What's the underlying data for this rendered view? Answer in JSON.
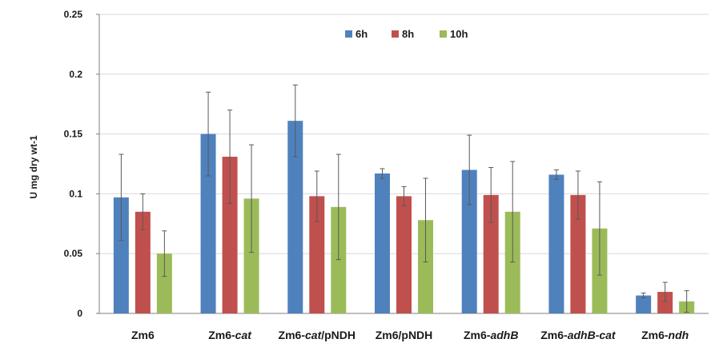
{
  "chart_data": {
    "type": "bar",
    "title": "",
    "xlabel": "",
    "ylabel": "U mg dry wt-1",
    "ylim": [
      0,
      0.25
    ],
    "yticks": [
      "0",
      "0.05",
      "0.1",
      "0.15",
      "0.2",
      "0.25"
    ],
    "ytick_values": [
      0,
      0.05,
      0.1,
      0.15,
      0.2,
      0.25
    ],
    "grid": true,
    "legend_position": "top-center",
    "categories": [
      {
        "parts": [
          [
            "Zm6",
            false
          ]
        ]
      },
      {
        "parts": [
          [
            "Zm6-",
            false
          ],
          [
            "cat",
            true
          ]
        ]
      },
      {
        "parts": [
          [
            "Zm6-",
            false
          ],
          [
            "cat",
            true
          ],
          [
            "/pNDH",
            false
          ]
        ]
      },
      {
        "parts": [
          [
            "Zm6/pNDH",
            false
          ]
        ]
      },
      {
        "parts": [
          [
            "Zm6-",
            false
          ],
          [
            "adhB",
            true
          ]
        ]
      },
      {
        "parts": [
          [
            "Zm6-",
            false
          ],
          [
            "adhB-cat",
            true
          ]
        ]
      },
      {
        "parts": [
          [
            "Zm6-",
            false
          ],
          [
            "ndh",
            true
          ]
        ]
      }
    ],
    "series": [
      {
        "name": "6h",
        "color": "#4f81bd",
        "values": [
          0.097,
          0.15,
          0.161,
          0.117,
          0.12,
          0.116,
          0.015
        ],
        "errors": [
          0.036,
          0.035,
          0.03,
          0.004,
          0.029,
          0.004,
          0.002
        ]
      },
      {
        "name": "8h",
        "color": "#c0504d",
        "values": [
          0.085,
          0.131,
          0.098,
          0.098,
          0.099,
          0.099,
          0.018
        ],
        "errors": [
          0.015,
          0.039,
          0.021,
          0.008,
          0.023,
          0.02,
          0.008
        ]
      },
      {
        "name": "10h",
        "color": "#9bbb59",
        "values": [
          0.05,
          0.096,
          0.089,
          0.078,
          0.085,
          0.071,
          0.01
        ],
        "errors": [
          0.019,
          0.045,
          0.044,
          0.035,
          0.042,
          0.039,
          0.009
        ]
      }
    ]
  }
}
